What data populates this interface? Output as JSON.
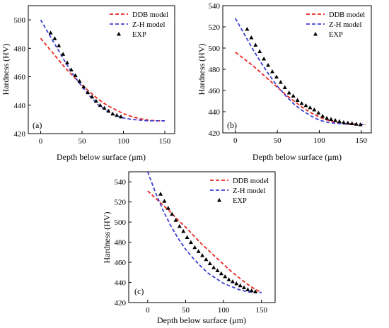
{
  "colors": {
    "ddb": "#e8261f",
    "zh": "#3d3ed3",
    "exp": "#000000",
    "axis": "#000000"
  },
  "chart_data": [
    {
      "type": "line",
      "panel_label": "(a)",
      "xlabel": "Depth below surface (μm)",
      "ylabel": "Hardness (HV)",
      "xlim": [
        -15,
        162
      ],
      "ylim": [
        420,
        510
      ],
      "xticks": [
        0,
        50,
        100,
        150
      ],
      "yticks": [
        420,
        440,
        460,
        480,
        500
      ],
      "legend_position": "top-right",
      "grid": false,
      "series": [
        {
          "name": "DDB model",
          "style": "dashed",
          "color": "ddb",
          "x": [
            0,
            10,
            20,
            30,
            40,
            50,
            60,
            70,
            80,
            90,
            100,
            110,
            120,
            130,
            140,
            150
          ],
          "y": [
            487,
            480,
            473,
            466,
            460,
            454,
            449,
            444,
            440,
            437,
            434,
            432,
            430.5,
            429.5,
            429,
            429
          ]
        },
        {
          "name": "Z-H model",
          "style": "dashed",
          "color": "zh",
          "x": [
            0,
            10,
            20,
            30,
            40,
            50,
            60,
            70,
            80,
            90,
            100,
            110,
            120,
            130,
            140,
            150
          ],
          "y": [
            500,
            490,
            480,
            470,
            461,
            453,
            446,
            440,
            436,
            433,
            431,
            430,
            429.5,
            429,
            429,
            429
          ]
        },
        {
          "name": "EXP",
          "style": "marker",
          "marker": "triangle",
          "color": "exp",
          "x": [
            12,
            17,
            22,
            27,
            32,
            37,
            42,
            47,
            52,
            57,
            62,
            67,
            72,
            77,
            82,
            87,
            92,
            97
          ],
          "y": [
            491,
            487,
            482,
            476,
            470,
            465,
            461,
            457,
            453,
            449,
            446,
            443,
            440,
            438,
            436,
            434,
            433,
            432
          ]
        }
      ]
    },
    {
      "type": "line",
      "panel_label": "(b)",
      "xlabel": "Depth below surface (μm)",
      "ylabel": "Hardness (HV)",
      "xlim": [
        -15,
        162
      ],
      "ylim": [
        420,
        540
      ],
      "xticks": [
        0,
        50,
        100,
        150
      ],
      "yticks": [
        420,
        440,
        460,
        480,
        500,
        520,
        540
      ],
      "legend_position": "top-right",
      "grid": false,
      "series": [
        {
          "name": "DDB model",
          "style": "dashed",
          "color": "ddb",
          "x": [
            0,
            10,
            20,
            30,
            40,
            50,
            60,
            70,
            80,
            90,
            100,
            110,
            120,
            130,
            140,
            150,
            155
          ],
          "y": [
            496,
            490,
            484,
            477,
            470,
            463,
            456,
            450,
            444,
            439,
            435,
            432,
            430,
            429,
            428.5,
            428,
            428
          ]
        },
        {
          "name": "Z-H model",
          "style": "dashed",
          "color": "zh",
          "x": [
            0,
            10,
            20,
            30,
            40,
            50,
            60,
            70,
            80,
            90,
            100,
            110,
            120,
            130,
            140,
            150,
            155
          ],
          "y": [
            528,
            514,
            500,
            487,
            475,
            464,
            455,
            447,
            441,
            436,
            432,
            430,
            429,
            428.5,
            428,
            428,
            428
          ]
        },
        {
          "name": "EXP",
          "style": "marker",
          "marker": "triangle",
          "color": "exp",
          "x": [
            14,
            19,
            24,
            29,
            34,
            39,
            44,
            49,
            54,
            59,
            64,
            69,
            74,
            79,
            84,
            89,
            94,
            99,
            104,
            109,
            114,
            119,
            124,
            129,
            134,
            139,
            144,
            149
          ],
          "y": [
            518,
            510,
            503,
            497,
            490,
            484,
            478,
            473,
            468,
            463,
            458,
            455,
            451,
            448,
            446,
            444,
            442,
            439,
            436,
            434,
            433,
            432,
            431,
            430,
            429.5,
            429,
            428.5,
            428
          ]
        }
      ]
    },
    {
      "type": "line",
      "panel_label": "(c)",
      "xlabel": "Depth below surface (μm)",
      "ylabel": "Hardness (HV)",
      "xlim": [
        -25,
        168
      ],
      "ylim": [
        420,
        550
      ],
      "xticks": [
        0,
        50,
        100,
        150
      ],
      "yticks": [
        420,
        440,
        460,
        480,
        500,
        520,
        540
      ],
      "legend_position": "top-right",
      "grid": false,
      "series": [
        {
          "name": "DDB model",
          "style": "dashed",
          "color": "ddb",
          "x": [
            0,
            10,
            20,
            30,
            40,
            50,
            60,
            70,
            80,
            90,
            100,
            110,
            120,
            130,
            140,
            150
          ],
          "y": [
            531,
            524,
            517,
            510,
            502,
            495,
            487,
            479,
            472,
            465,
            458,
            451,
            445,
            439,
            434,
            430
          ]
        },
        {
          "name": "Z-H model",
          "style": "dashed",
          "color": "zh",
          "x": [
            0,
            10,
            20,
            30,
            40,
            50,
            60,
            70,
            80,
            90,
            100,
            110,
            120,
            130,
            140,
            150
          ],
          "y": [
            550,
            530,
            512,
            497,
            484,
            473,
            464,
            456,
            449,
            444,
            439,
            436,
            433,
            431,
            430,
            430
          ]
        },
        {
          "name": "EXP",
          "style": "marker",
          "marker": "triangle",
          "color": "exp",
          "x": [
            17,
            22,
            27,
            32,
            37,
            42,
            47,
            52,
            57,
            62,
            67,
            72,
            77,
            82,
            87,
            92,
            97,
            102,
            107,
            112,
            117,
            122,
            127,
            132,
            137,
            142
          ],
          "y": [
            528,
            521,
            514,
            508,
            502,
            496,
            491,
            485,
            480,
            475,
            471,
            467,
            463,
            459,
            455,
            452,
            449,
            446,
            443,
            441,
            439,
            437,
            435,
            433,
            432,
            431
          ]
        }
      ]
    }
  ]
}
